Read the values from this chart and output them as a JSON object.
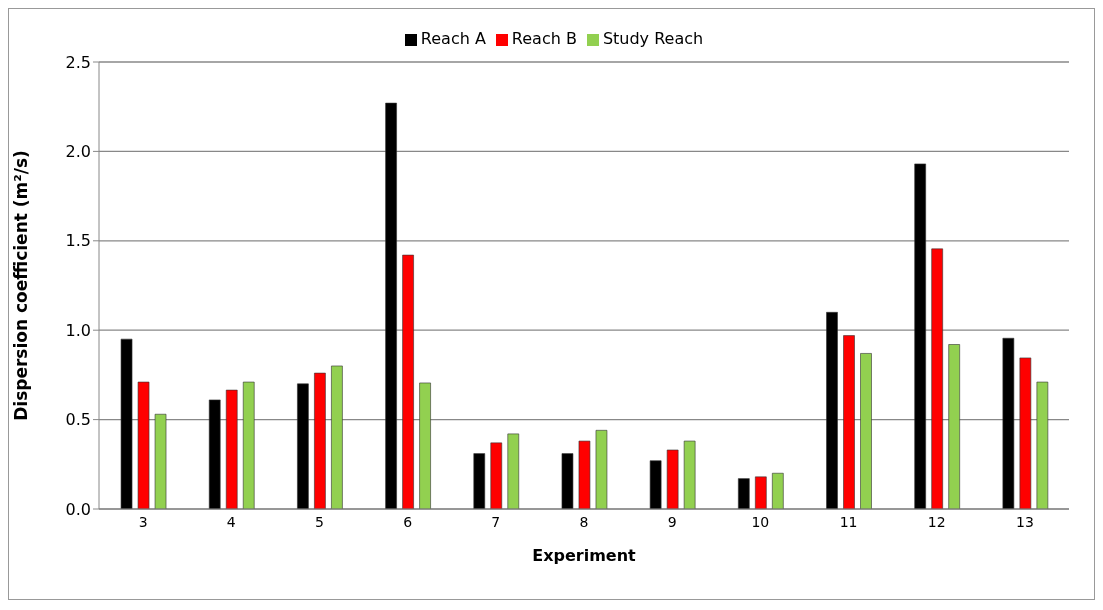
{
  "chart_data": {
    "type": "bar",
    "xlabel": "Experiment",
    "ylabel": "Dispersion coefficient (m²/s)",
    "categories": [
      "3",
      "4",
      "5",
      "6",
      "7",
      "8",
      "9",
      "10",
      "11",
      "12",
      "13"
    ],
    "series": [
      {
        "name": "Reach A",
        "color": "#000000",
        "values": [
          0.95,
          0.61,
          0.7,
          2.27,
          0.31,
          0.31,
          0.27,
          0.17,
          1.1,
          1.93,
          0.955
        ]
      },
      {
        "name": "Reach B",
        "color": "#ff0000",
        "values": [
          0.71,
          0.665,
          0.76,
          1.42,
          0.37,
          0.38,
          0.33,
          0.18,
          0.97,
          1.455,
          0.845
        ]
      },
      {
        "name": "Study Reach",
        "color": "#92d050",
        "values": [
          0.53,
          0.71,
          0.8,
          0.705,
          0.42,
          0.44,
          0.38,
          0.2,
          0.87,
          0.92,
          0.71
        ]
      }
    ],
    "ylim": [
      0,
      2.5
    ],
    "yticks": [
      {
        "value": 0,
        "label": "0.0"
      },
      {
        "value": 0.5,
        "label": "0.5"
      },
      {
        "value": 1,
        "label": "1.0"
      },
      {
        "value": 1.5,
        "label": "1.5"
      },
      {
        "value": 2,
        "label": "2.0"
      },
      {
        "value": 2.5,
        "label": "2.5"
      }
    ],
    "grid": "y",
    "legend": "top"
  }
}
